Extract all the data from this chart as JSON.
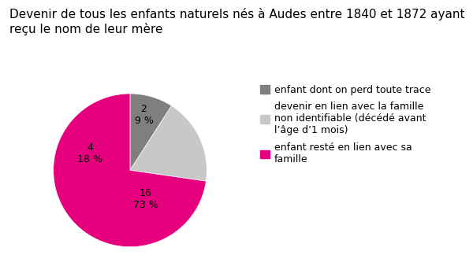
{
  "title_line1": "Devenir de tous les enfants naturels nés à Audes entre 1840 et 1872 ayant",
  "title_line2": "reçu le nom de leur mère",
  "values": [
    2,
    4,
    16
  ],
  "labels": [
    "enfant dont on perd toute trace",
    "devenir en lien avec la famille\nnon identifiable (décédé avant\nl’âge d’1 mois)",
    "enfant resté en lien avec sa\nfamille"
  ],
  "counts": [
    2,
    4,
    16
  ],
  "percents": [
    "9 %",
    "18 %",
    "73 %"
  ],
  "colors": [
    "#7f7f7f",
    "#c8c8c8",
    "#e6007e"
  ],
  "background_color": "#ffffff",
  "title_fontsize": 11,
  "label_fontsize": 9,
  "legend_fontsize": 9
}
